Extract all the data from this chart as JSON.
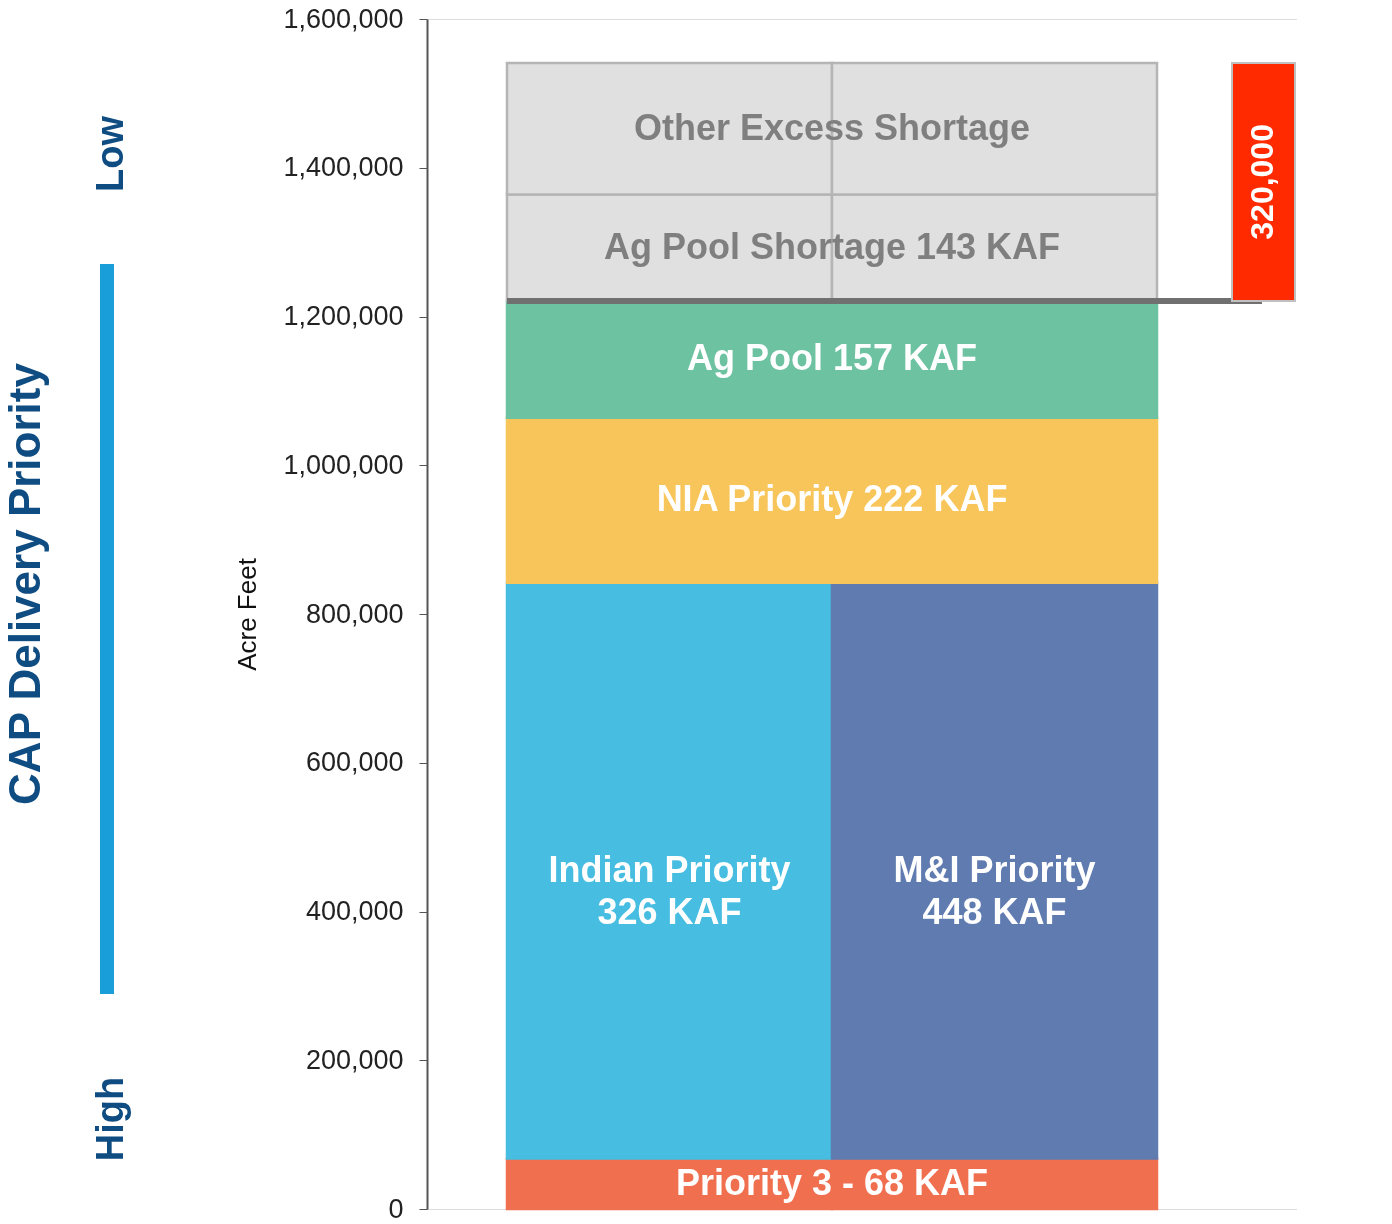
{
  "chart_data": {
    "type": "bar",
    "stacked": true,
    "relative": false,
    "categories": [
      null,
      null
    ],
    "ylabel": "Acre Feet",
    "ylim": [
      0,
      1600000
    ],
    "yticks": [
      0,
      {
        "value": 200000,
        "label": "200,000"
      },
      {
        "value": 400000,
        "label": "400,000"
      },
      {
        "value": 600000,
        "label": "600,000"
      },
      {
        "value": 800000,
        "label": "800,000"
      },
      {
        "value": 1000000,
        "label": "1,000,000"
      },
      {
        "value": 1200000,
        "label": "1,200,000"
      },
      {
        "value": 1400000,
        "label": "1,400,000"
      },
      {
        "value": 1600000,
        "label": "1,600,000"
      }
    ],
    "grid": false,
    "series": [
      {
        "name": "Priority 3 -  68 KAF",
        "color": "#f06f4f",
        "values": [
          68000,
          68000
        ]
      },
      {
        "name": "Indian Priority 326 KAF",
        "color": "#46bde1",
        "values": [
          774000,
          null
        ]
      },
      {
        "name": "M&I Priority 448 KAF",
        "color": "#5f7bb0",
        "values": [
          null,
          774000
        ]
      },
      {
        "name": "NIA Priority 222 KAF",
        "color": "#f7c55a",
        "values": [
          222000,
          222000
        ]
      },
      {
        "name": "Ag Pool 157 KAF",
        "color": "#6cc2a1",
        "values": [
          157000,
          157000
        ]
      },
      {
        "name": "Ag Pool Shortage 143 KAF",
        "color": "#e0e0e0",
        "values": [
          143000,
          143000
        ]
      },
      {
        "name": "Other Excess Shortage",
        "color": "#e0e0e0",
        "values": [
          177000,
          177000
        ]
      }
    ],
    "ref_lines": [
      {
        "axis": "y",
        "value": 1221000,
        "color": "#707070"
      }
    ],
    "bands": [
      {
        "axis": "y",
        "from": 1221000,
        "to": 1541000,
        "label": "320,000",
        "color": "#ff2a00"
      }
    ],
    "annotations": [
      "CAP Delivery Priority",
      "Low",
      "High"
    ]
  }
}
